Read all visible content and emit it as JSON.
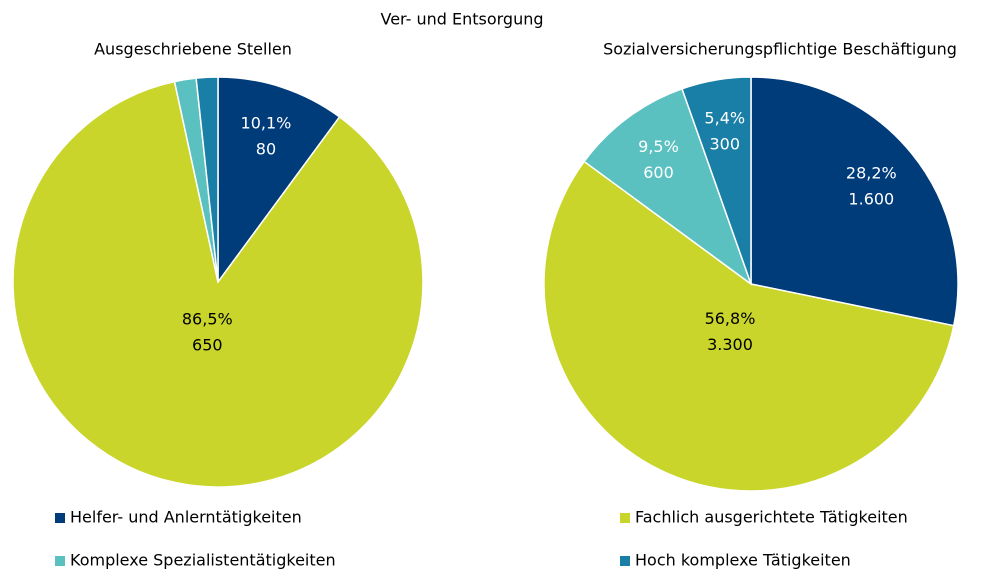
{
  "title": "Ver- und Entsorgung",
  "chart_data": [
    {
      "type": "pie",
      "title": "Ausgeschriebene  Stellen",
      "categories": [
        "Helfer- und Anlerntätigkeiten",
        "Fachlich ausgerichtete Tätigkeiten",
        "Komplexe Spezialistentätigkeiten",
        "Hoch komplexe Tätigkeiten"
      ],
      "colors": [
        "#003b7a",
        "#c9d52b",
        "#5bc0c0",
        "#1a7fa6"
      ],
      "values": [
        10.1,
        86.5,
        1.7,
        1.7
      ],
      "value_labels": [
        "10,1%",
        "86,5%",
        null,
        null
      ],
      "counts": [
        80,
        650,
        null,
        null
      ]
    },
    {
      "type": "pie",
      "title": "Sozialversicherungspflichtige  Beschäftigung",
      "categories": [
        "Helfer- und Anlerntätigkeiten",
        "Fachlich ausgerichtete Tätigkeiten",
        "Komplexe Spezialistentätigkeiten",
        "Hoch komplexe Tätigkeiten"
      ],
      "colors": [
        "#003b7a",
        "#c9d52b",
        "#5bc0c0",
        "#1a7fa6"
      ],
      "values": [
        28.2,
        56.8,
        9.5,
        5.4
      ],
      "value_labels": [
        "28,2%",
        "56,8%",
        "9,5%",
        "5,4%"
      ],
      "counts": [
        {
          "value": 1600,
          "label": "1.600"
        },
        {
          "value": 3300,
          "label": "3.300"
        },
        600,
        300
      ]
    }
  ]
}
